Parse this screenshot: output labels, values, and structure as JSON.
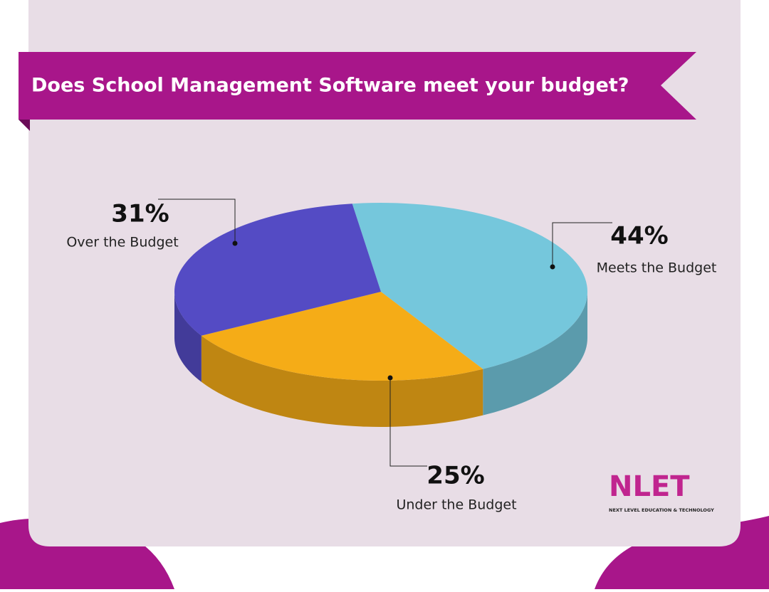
{
  "chart_data": {
    "type": "pie3d",
    "title": "Does School Management Software meet your budget?",
    "categories": [
      "Meets the Budget",
      "Under the Budget",
      "Over the Budget"
    ],
    "values": [
      44,
      25,
      31
    ],
    "value_labels": [
      "44%",
      "25%",
      "31%"
    ],
    "colors": [
      "#75c7dc",
      "#f5ac17",
      "#544bc4"
    ]
  },
  "logo": {
    "text": "NLET",
    "tagline": "NEXT LEVEL EDUCATION & TECHNOLOGY"
  }
}
